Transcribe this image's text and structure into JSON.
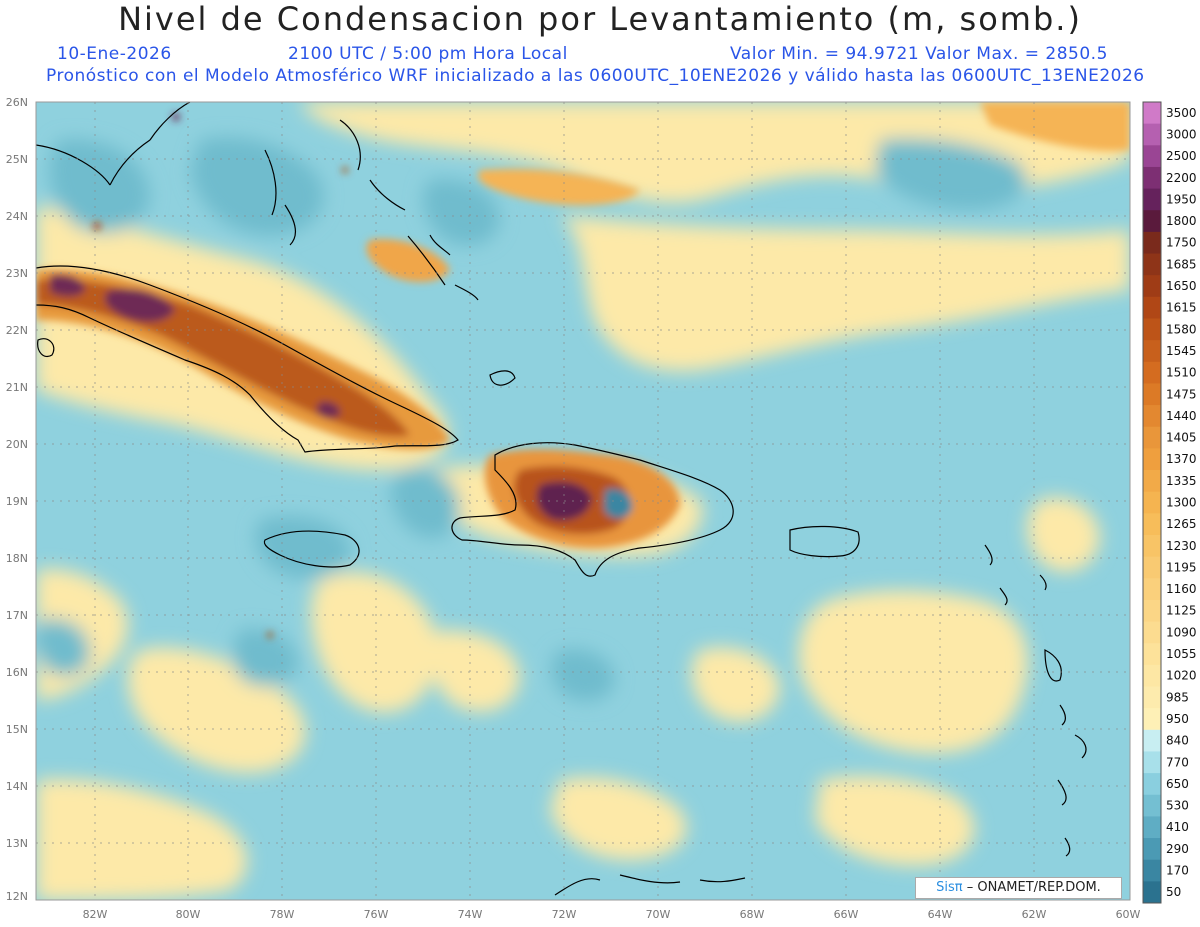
{
  "header": {
    "title": "Nivel de Condensacion por Levantamiento (m, somb.)",
    "date": "10-Ene-2026",
    "time": "2100 UTC / 5:00 pm Hora Local",
    "minmax": "Valor Min. = 94.9721  Valor Max. = 2850.5",
    "forecast": "Pronóstico con el Modelo Atmosférico WRF inicializado a las 0600UTC_10ENE2026 y válido hasta las  0600UTC_13ENE2026"
  },
  "map": {
    "lat_labels": [
      "26N",
      "25N",
      "24N",
      "23N",
      "22N",
      "21N",
      "20N",
      "19N",
      "18N",
      "17N",
      "16N",
      "15N",
      "14N",
      "13N",
      "12N"
    ],
    "lon_labels": [
      "82W",
      "80W",
      "78W",
      "76W",
      "74W",
      "72W",
      "70W",
      "68W",
      "66W",
      "64W",
      "62W",
      "60W"
    ],
    "grid": true
  },
  "colorbar": {
    "labels": [
      "3500",
      "3000",
      "2500",
      "2200",
      "1950",
      "1800",
      "1750",
      "1685",
      "1650",
      "1615",
      "1580",
      "1545",
      "1510",
      "1475",
      "1440",
      "1405",
      "1370",
      "1335",
      "1300",
      "1265",
      "1230",
      "1195",
      "1160",
      "1125",
      "1090",
      "1055",
      "1020",
      "985",
      "950",
      "840",
      "770",
      "650",
      "530",
      "410",
      "290",
      "170",
      "50"
    ],
    "colors": [
      "#d07ac8",
      "#b560b0",
      "#9a4594",
      "#7d2f73",
      "#65225c",
      "#5a1a3c",
      "#7a2a1c",
      "#8e3418",
      "#9f3c16",
      "#b04716",
      "#bd5418",
      "#c8601c",
      "#d46c20",
      "#dc7a26",
      "#e38830",
      "#e9963a",
      "#ef9f3e",
      "#f2aa48",
      "#f5b450",
      "#f7bd5a",
      "#f8c466",
      "#f9ca72",
      "#fad07c",
      "#fbd686",
      "#fcdc90",
      "#fde29a",
      "#fde7a4",
      "#fdebad",
      "#fef0b6",
      "#c8eef2",
      "#a8e0ea",
      "#8acfdf",
      "#74bfd2",
      "#5fadc4",
      "#4b9ab4",
      "#3a86a2",
      "#2b728f"
    ]
  },
  "credit": {
    "logo": "Sisπ",
    "org": "– ONAMET/REP.DOM."
  }
}
